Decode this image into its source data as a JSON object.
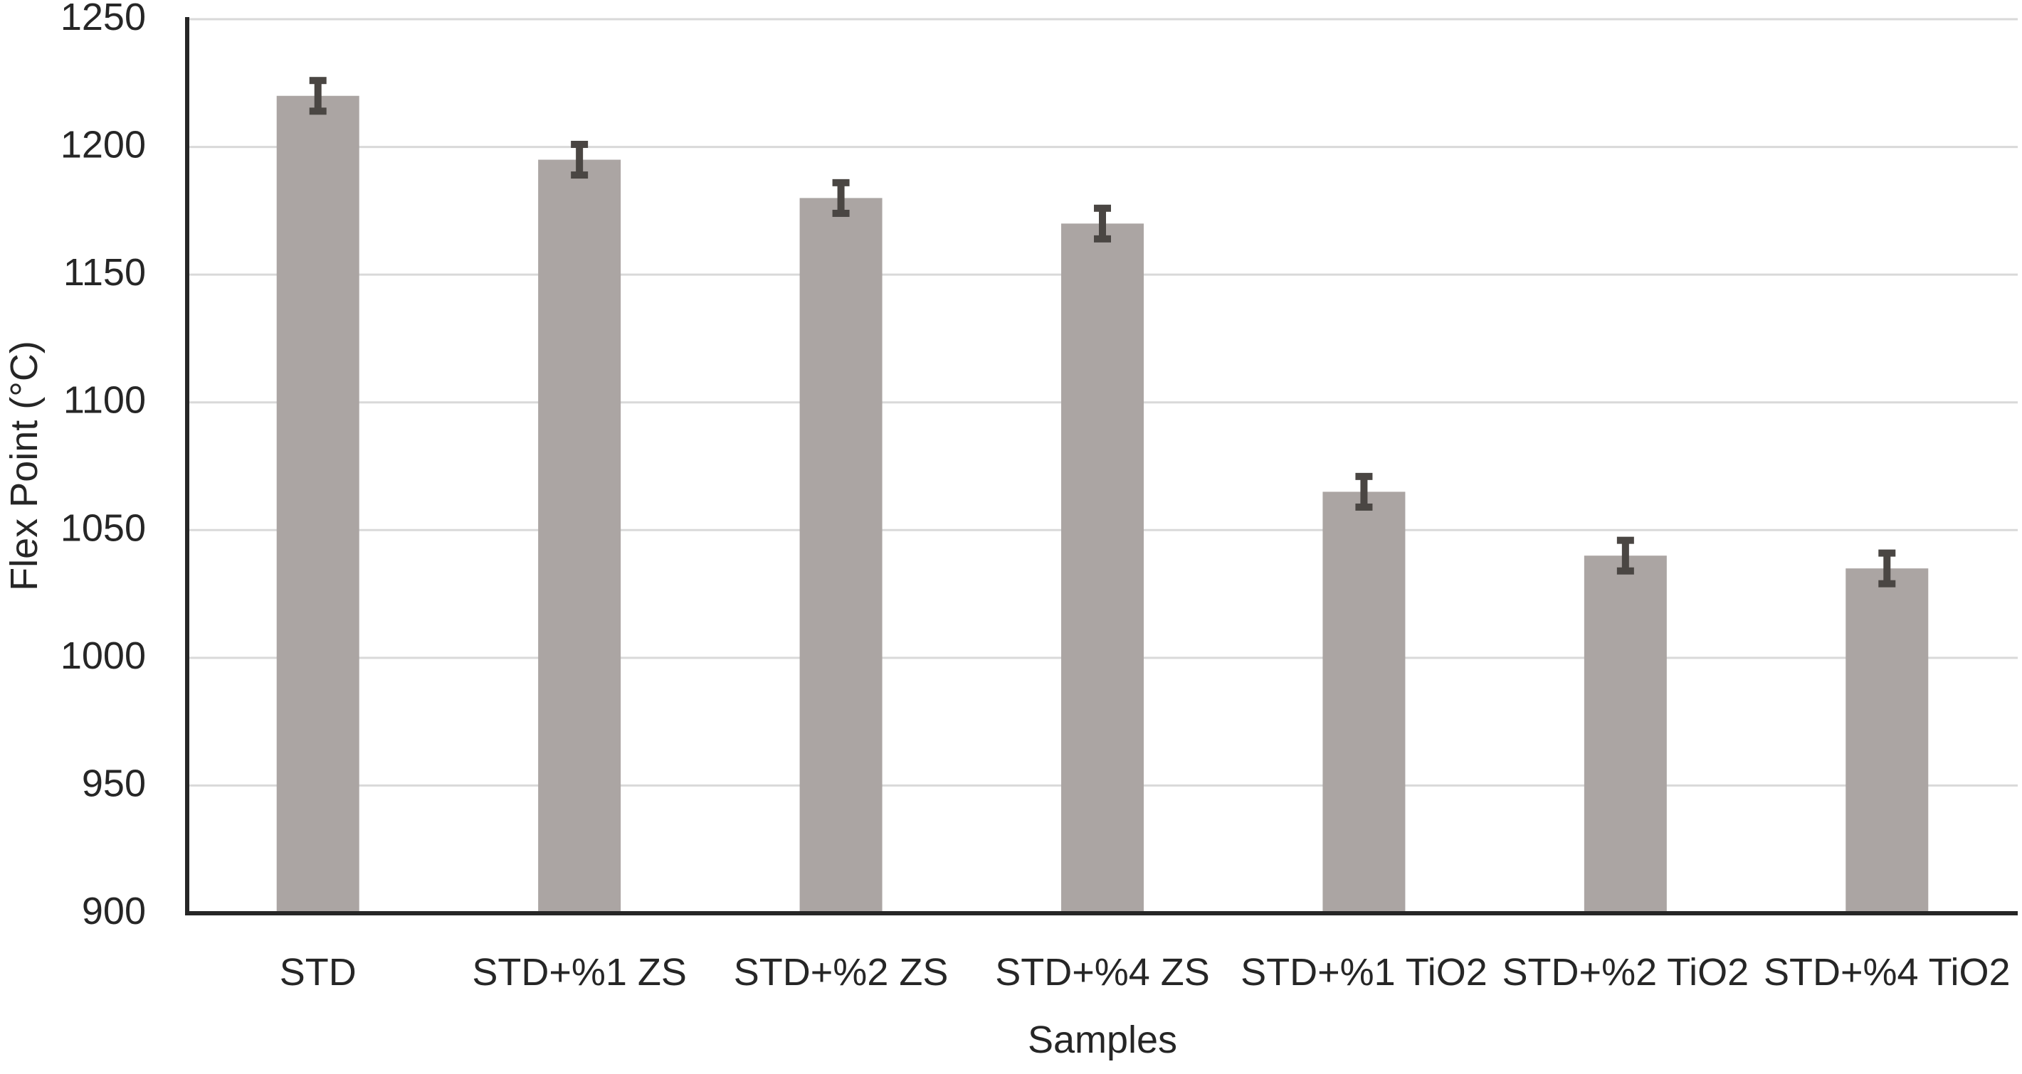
{
  "figure": {
    "background": "#ffffff"
  },
  "chart_data": {
    "type": "bar",
    "title": "",
    "categories": [
      "STD",
      "STD+%1 ZS",
      "STD+%2 ZS",
      "STD+%4 ZS",
      "STD+%1 TiO2",
      "STD+%2 TiO2",
      "STD+%4 TiO2"
    ],
    "values": [
      1220,
      1195,
      1180,
      1170,
      1065,
      1040,
      1035
    ],
    "error_bars": [
      6,
      6,
      6,
      6,
      6,
      6,
      6
    ],
    "xlabel": "Samples",
    "ylabel": "Flex Point (°C)",
    "ylim": [
      900,
      1250
    ],
    "ytick_step": 50,
    "ytick_labels": [
      "900",
      "950",
      "1000",
      "1050",
      "1100",
      "1150",
      "1200",
      "1250"
    ],
    "grid": true,
    "legend": false,
    "colors": {
      "bar_fill": "#ABA5A3",
      "error_bar": "#4A4643",
      "gridline": "#D9D9D9",
      "axis_line": "#262626",
      "text": "#262626"
    }
  }
}
